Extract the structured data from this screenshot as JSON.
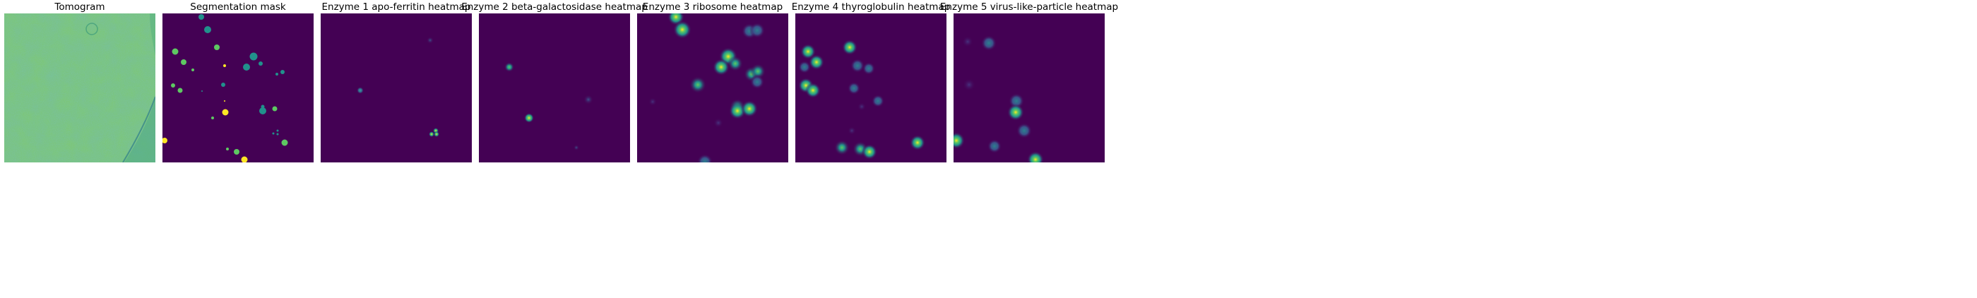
{
  "colors": {
    "viridis_bg": "#440154",
    "viridis_teal": "#21918c",
    "viridis_green": "#5ec962",
    "viridis_yellow": "#fde725",
    "tomogram_base": "#7dc765"
  },
  "panels": [
    {
      "title": "Tomogram",
      "kind": "tomogram"
    },
    {
      "title": "Segmentation mask",
      "kind": "mask"
    },
    {
      "title": "Enzyme 1 apo-ferritin heatmap",
      "kind": "heatmap"
    },
    {
      "title": "Enzyme 2 beta-galactosidase heatmap",
      "kind": "heatmap"
    },
    {
      "title": "Enzyme 3 ribosome heatmap",
      "kind": "heatmap"
    },
    {
      "title": "Enzyme 4 thyroglobulin heatmap",
      "kind": "heatmap"
    },
    {
      "title": "Enzyme 5 virus-like-particle heatmap",
      "kind": "heatmap"
    }
  ]
}
